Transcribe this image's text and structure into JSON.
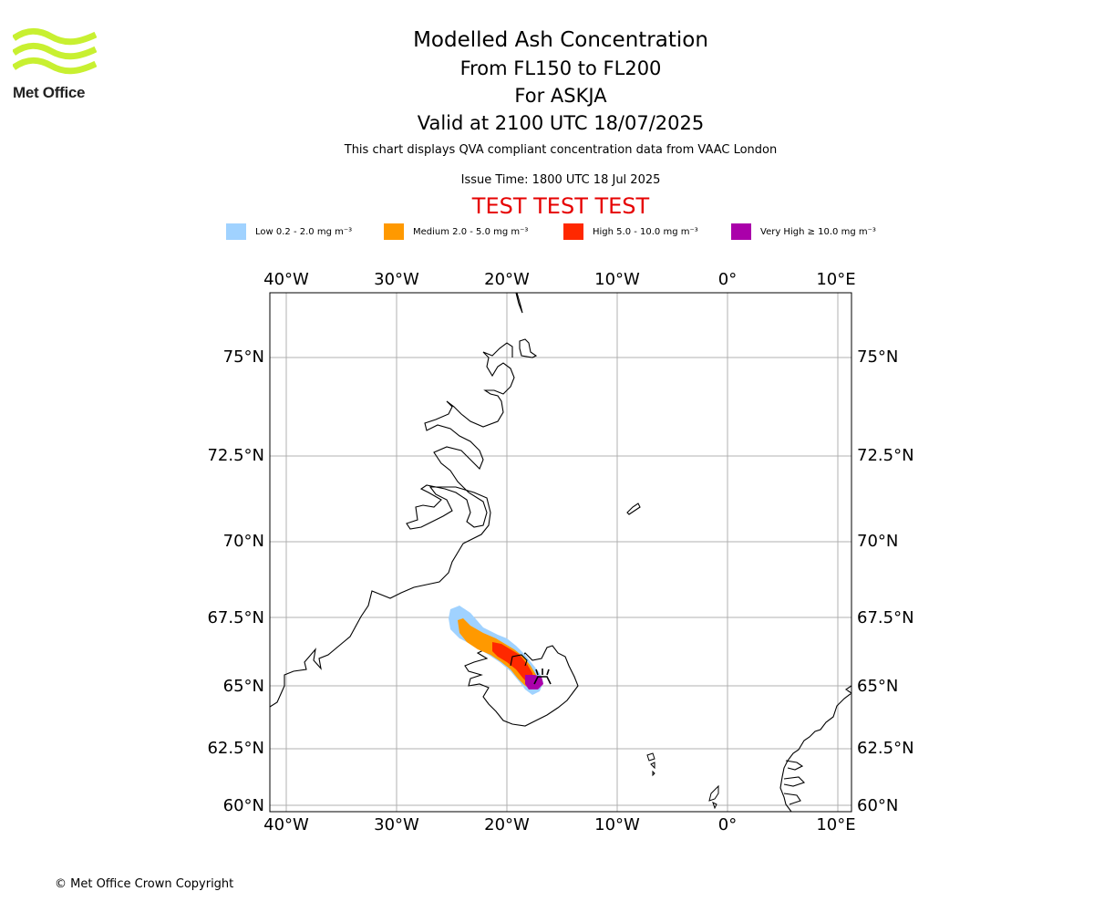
{
  "logo": {
    "text": "Met Office",
    "color": "#c8f031"
  },
  "title": {
    "line1": "Modelled Ash Concentration",
    "line2": "From FL150 to FL200",
    "line3": "For ASKJA",
    "line4": "Valid at 2100 UTC 18/07/2025"
  },
  "description": "This chart displays QVA compliant concentration data from VAAC London",
  "issue_time": "Issue Time: 1800 UTC 18 Jul 2025",
  "test_banner": "TEST TEST TEST",
  "legend": [
    {
      "label": "Low 0.2 - 2.0 mg m⁻³",
      "color": "#a0d2ff"
    },
    {
      "label": "Medium 2.0 - 5.0 mg m⁻³",
      "color": "#ff9900"
    },
    {
      "label": "High 5.0 - 10.0 mg m⁻³",
      "color": "#ff2800"
    },
    {
      "label": "Very High ≥ 10.0 mg m⁻³",
      "color": "#aa00aa"
    }
  ],
  "map": {
    "lon_range": [
      -41.5,
      11.3
    ],
    "lat_range": [
      59.8,
      76.8
    ],
    "lon_labels": [
      "40°W",
      "30°W",
      "20°W",
      "10°W",
      "0°",
      "10°E"
    ],
    "lat_labels": [
      "75°N",
      "72.5°N",
      "70°N",
      "67.5°N",
      "65°N",
      "62.5°N",
      "60°N"
    ],
    "gridlines": true,
    "volcano": {
      "name": "ASKJA",
      "lon": -16.75,
      "lat": 65.03
    }
  },
  "copyright": "© Met Office Crown Copyright"
}
